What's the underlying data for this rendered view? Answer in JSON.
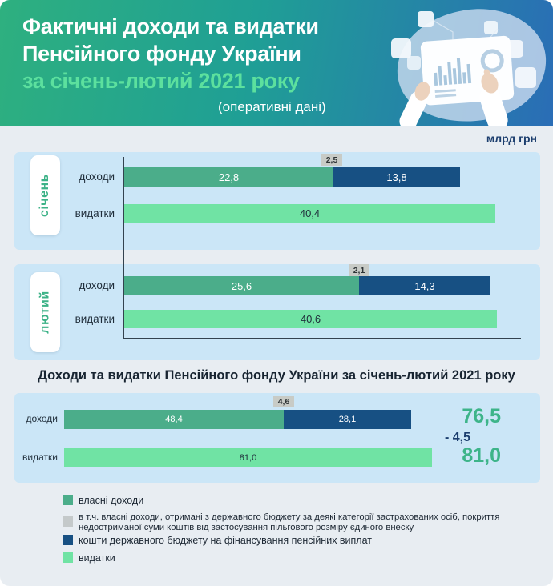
{
  "header": {
    "title_line1": "Фактичні доходи та видатки",
    "title_line2": "Пенсійного фонду України",
    "subtitle": "за січень-лютий 2021 року",
    "note": "(оперативні дані)"
  },
  "units_label": "млрд грн",
  "section_title": "Доходи та видатки Пенсійного фонду України за січень-лютий 2021 року",
  "months": [
    {
      "name": "січень",
      "income_label": "доходи",
      "expend_label": "видатки",
      "own": "22,8",
      "subset": "2,5",
      "state": "13,8",
      "expend": "40,4"
    },
    {
      "name": "лютий",
      "income_label": "доходи",
      "expend_label": "видатки",
      "own": "25,6",
      "subset": "2,1",
      "state": "14,3",
      "expend": "40,6"
    }
  ],
  "combined": {
    "income_label": "доходи",
    "expend_label": "видатки",
    "own": "48,4",
    "subset": "4,6",
    "state": "28,1",
    "expend": "81,0",
    "total_income": "76,5",
    "balance": "- 4,5",
    "total_expend": "81,0"
  },
  "legend": {
    "items": [
      {
        "label": "власні доходи",
        "color": "#4bad8a"
      },
      {
        "label": "в т.ч. власні доходи, отримані з державного бюджету за деякі категорії застрахованих осіб, покриття недоотриманої суми коштів від застосування пільгового розміру єдиного внеску",
        "color": "#c4c9ca"
      },
      {
        "label": "кошти державного бюджету на фінансування пенсійних виплат",
        "color": "#175083"
      },
      {
        "label": "видатки",
        "color": "#70e3a4"
      }
    ]
  },
  "colors": {
    "own_income": "#4bad8a",
    "subset_tag": "#c8cbc6",
    "state_budget": "#175083",
    "expenditures": "#70e3a4",
    "panel_bg": "#cbe6f7",
    "accent_green": "#3db489",
    "navy": "#1c3e6e",
    "header_gradient_left": "#2eb07f",
    "header_gradient_right": "#2a6db6"
  },
  "chart_data": [
    {
      "type": "bar",
      "orientation": "horizontal",
      "title": "січень",
      "unit": "млрд грн",
      "categories": [
        "доходи",
        "видатки"
      ],
      "series": [
        {
          "name": "власні доходи",
          "values": [
            22.8,
            0
          ]
        },
        {
          "name": "в т.ч. власні доходи, отримані з державного бюджету",
          "values": [
            2.5,
            0
          ]
        },
        {
          "name": "кошти державного бюджету на фінансування пенсійних виплат",
          "values": [
            13.8,
            0
          ]
        },
        {
          "name": "видатки",
          "values": [
            0,
            40.4
          ]
        }
      ]
    },
    {
      "type": "bar",
      "orientation": "horizontal",
      "title": "лютий",
      "unit": "млрд грн",
      "categories": [
        "доходи",
        "видатки"
      ],
      "series": [
        {
          "name": "власні доходи",
          "values": [
            25.6,
            0
          ]
        },
        {
          "name": "в т.ч. власні доходи, отримані з державного бюджету",
          "values": [
            2.1,
            0
          ]
        },
        {
          "name": "кошти державного бюджету на фінансування пенсійних виплат",
          "values": [
            14.3,
            0
          ]
        },
        {
          "name": "видатки",
          "values": [
            0,
            40.6
          ]
        }
      ]
    },
    {
      "type": "bar",
      "orientation": "horizontal",
      "title": "Доходи та видатки Пенсійного фонду України за січень-лютий 2021 року",
      "unit": "млрд грн",
      "categories": [
        "доходи",
        "видатки"
      ],
      "series": [
        {
          "name": "власні доходи",
          "values": [
            48.4,
            0
          ]
        },
        {
          "name": "в т.ч. власні доходи, отримані з державного бюджету",
          "values": [
            4.6,
            0
          ]
        },
        {
          "name": "кошти державного бюджету на фінансування пенсійних виплат",
          "values": [
            28.1,
            0
          ]
        },
        {
          "name": "видатки",
          "values": [
            0,
            81.0
          ]
        }
      ],
      "totals": {
        "income": 76.5,
        "balance": -4.5,
        "expenditures": 81.0
      }
    }
  ]
}
